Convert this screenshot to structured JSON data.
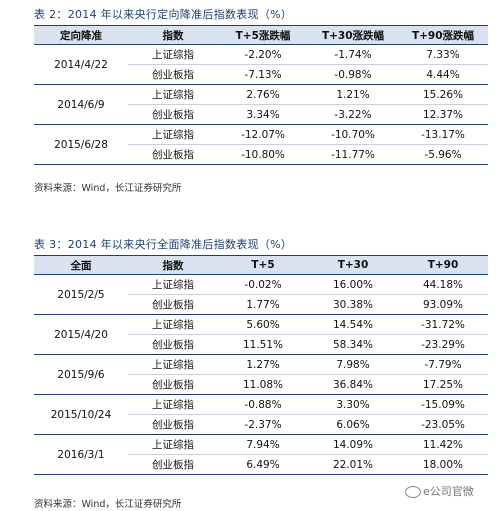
{
  "table1": {
    "title": "表 2：2014 年以来央行定向降准后指数表现（%）",
    "headers": [
      "定向降准",
      "指数",
      "T+5涨跌幅",
      "T+30涨跌幅",
      "T+90涨跌幅"
    ],
    "groups": [
      {
        "date": "2014/4/22",
        "rows": [
          {
            "index": "上证综指",
            "v": [
              "-2.20%",
              "-1.74%",
              "7.33%"
            ]
          },
          {
            "index": "创业板指",
            "v": [
              "-7.13%",
              "-0.98%",
              "4.44%"
            ]
          }
        ]
      },
      {
        "date": "2014/6/9",
        "rows": [
          {
            "index": "上证综指",
            "v": [
              "2.76%",
              "1.21%",
              "15.26%"
            ]
          },
          {
            "index": "创业板指",
            "v": [
              "3.34%",
              "-3.22%",
              "12.37%"
            ]
          }
        ]
      },
      {
        "date": "2015/6/28",
        "rows": [
          {
            "index": "上证综指",
            "v": [
              "-12.07%",
              "-10.70%",
              "-13.17%"
            ]
          },
          {
            "index": "创业板指",
            "v": [
              "-10.80%",
              "-11.77%",
              "-5.96%"
            ]
          }
        ]
      }
    ],
    "source": "资料来源：Wind，长江证券研究所"
  },
  "table2": {
    "title": "表 3：2014 年以来央行全面降准后指数表现（%）",
    "headers": [
      "全面",
      "指数",
      "T+5",
      "T+30",
      "T+90"
    ],
    "groups": [
      {
        "date": "2015/2/5",
        "rows": [
          {
            "index": "上证综指",
            "v": [
              "-0.02%",
              "16.00%",
              "44.18%"
            ]
          },
          {
            "index": "创业板指",
            "v": [
              "1.77%",
              "30.38%",
              "93.09%"
            ]
          }
        ]
      },
      {
        "date": "2015/4/20",
        "rows": [
          {
            "index": "上证综指",
            "v": [
              "5.60%",
              "14.54%",
              "-31.72%"
            ]
          },
          {
            "index": "创业板指",
            "v": [
              "11.51%",
              "58.34%",
              "-23.29%"
            ]
          }
        ]
      },
      {
        "date": "2015/9/6",
        "rows": [
          {
            "index": "上证综指",
            "v": [
              "1.27%",
              "7.98%",
              "-7.79%"
            ]
          },
          {
            "index": "创业板指",
            "v": [
              "11.08%",
              "36.84%",
              "17.25%"
            ]
          }
        ]
      },
      {
        "date": "2015/10/24",
        "rows": [
          {
            "index": "上证综指",
            "v": [
              "-0.88%",
              "3.30%",
              "-15.09%"
            ]
          },
          {
            "index": "创业板指",
            "v": [
              "-2.37%",
              "6.06%",
              "-23.05%"
            ]
          }
        ]
      },
      {
        "date": "2016/3/1",
        "rows": [
          {
            "index": "上证综指",
            "v": [
              "7.94%",
              "14.09%",
              "11.42%"
            ]
          },
          {
            "index": "创业板指",
            "v": [
              "6.49%",
              "22.01%",
              "18.00%"
            ]
          }
        ]
      }
    ],
    "source": "资料来源：Wind，长江证券研究所"
  },
  "watermark": "e公司官微"
}
